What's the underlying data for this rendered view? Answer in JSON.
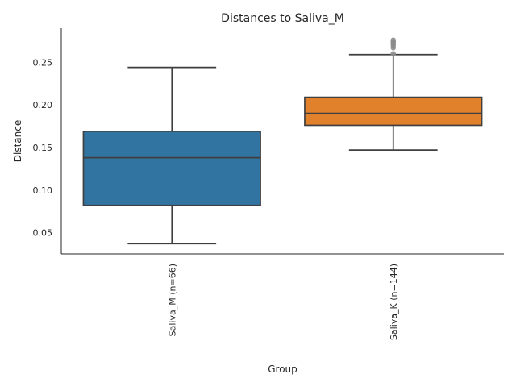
{
  "chart_data": {
    "type": "box",
    "title": "Distances to Saliva_M",
    "xlabel": "Group",
    "ylabel": "Distance",
    "ylim": [
      0.025,
      0.29
    ],
    "yticks": [
      0.05,
      0.1,
      0.15,
      0.2,
      0.25
    ],
    "ytick_labels": [
      "0.05",
      "0.10",
      "0.15",
      "0.20",
      "0.25"
    ],
    "grid": false,
    "categories": [
      "Saliva_M (n=66)",
      "Saliva_K (n=144)"
    ],
    "boxes": [
      {
        "name": "Saliva_M (n=66)",
        "color": "#3274a1",
        "whisker_low": 0.037,
        "q1": 0.082,
        "median": 0.138,
        "q3": 0.169,
        "whisker_high": 0.244,
        "outliers": []
      },
      {
        "name": "Saliva_K (n=144)",
        "color": "#e1812c",
        "whisker_low": 0.147,
        "q1": 0.176,
        "median": 0.19,
        "q3": 0.209,
        "whisker_high": 0.259,
        "outliers": [
          0.26,
          0.267,
          0.27,
          0.272,
          0.274,
          0.276
        ]
      }
    ],
    "median_color": "#3f3f3f",
    "line_color": "#3f3f3f",
    "flier_color": "#8c8c8c"
  }
}
